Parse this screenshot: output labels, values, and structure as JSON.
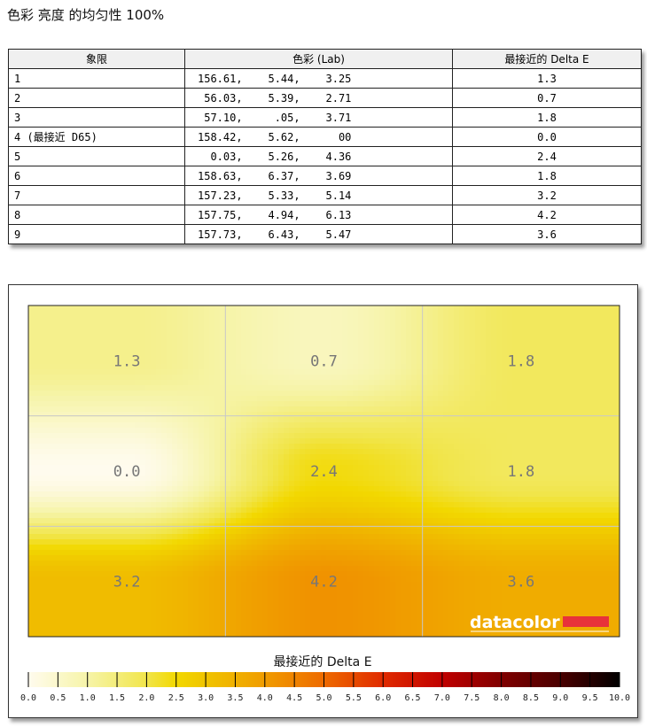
{
  "title": "色彩 亮度 的均匀性 100%",
  "table": {
    "headers": [
      "象限",
      "色彩 (Lab)",
      "最接近的 Delta E"
    ],
    "rows": [
      [
        "1",
        "156.61,    5.44,    3.25",
        "1.3"
      ],
      [
        "2",
        " 56.03,    5.39,    2.71",
        "0.7"
      ],
      [
        "3",
        " 57.10,     .05,    3.71",
        "1.8"
      ],
      [
        "4 (最接近 D65)",
        "158.42,    5.62,      00",
        "0.0"
      ],
      [
        "5",
        "  0.03,    5.26,    4.36",
        "2.4"
      ],
      [
        "6",
        "158.63,    6.37,    3.69",
        "1.8"
      ],
      [
        "7",
        "157.23,    5.33,    5.14",
        "3.2"
      ],
      [
        "8",
        "157.75,    4.94,    6.13",
        "4.2"
      ],
      [
        "9",
        "157.73,    6.43,    5.47",
        "3.6"
      ]
    ]
  },
  "chart_data": {
    "type": "heatmap",
    "grid": [
      [
        1.3,
        0.7,
        1.8
      ],
      [
        0.0,
        2.4,
        1.8
      ],
      [
        3.2,
        4.2,
        3.6
      ]
    ],
    "labels": [
      [
        "1.3",
        "0.7",
        "1.8"
      ],
      [
        "0.0",
        "2.4",
        "1.8"
      ],
      [
        "3.2",
        "4.2",
        "3.6"
      ]
    ],
    "colorbar_title": "最接近的 Delta E",
    "colorbar_range": [
      0,
      10
    ],
    "colorbar_ticks": [
      "0.0",
      "0.5",
      "1.0",
      "1.5",
      "2.0",
      "2.5",
      "3.0",
      "3.5",
      "4.0",
      "4.5",
      "5.0",
      "5.5",
      "6.0",
      "6.5",
      "7.0",
      "7.5",
      "8.0",
      "8.5",
      "9.0",
      "9.5",
      "10.0"
    ],
    "colorscale": [
      [
        0,
        "#fffbee"
      ],
      [
        1,
        "#f6f4a8"
      ],
      [
        2,
        "#f1e54a"
      ],
      [
        2.5,
        "#f2d800"
      ],
      [
        3,
        "#f0c400"
      ],
      [
        4,
        "#f09c00"
      ],
      [
        5,
        "#ee6a00"
      ],
      [
        6,
        "#e02a00"
      ],
      [
        7,
        "#c00000"
      ],
      [
        8,
        "#800000"
      ],
      [
        9,
        "#4a0000"
      ],
      [
        10,
        "#000000"
      ]
    ],
    "logo": "datacolor",
    "logo_color": "#e8323a"
  }
}
